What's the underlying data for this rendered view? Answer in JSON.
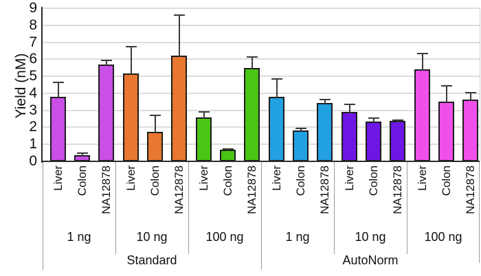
{
  "chart_data": {
    "type": "bar",
    "title": "",
    "ylabel": "Yield (nM)",
    "ylim": [
      0,
      9
    ],
    "yticks": [
      0,
      1,
      2,
      3,
      4,
      5,
      6,
      7,
      8,
      9
    ],
    "grid": true,
    "legend_position": "none",
    "bar_labels": [
      "Liver",
      "Colon",
      "NA12878"
    ],
    "methods": [
      {
        "label": "Standard",
        "groups": [
          {
            "label": "1 ng",
            "color": "#c94fe6",
            "categories": [
              "Liver",
              "Colon",
              "NA12878"
            ],
            "values": [
              3.8,
              0.37,
              5.7
            ],
            "errors": [
              0.85,
              0.12,
              0.25
            ]
          },
          {
            "label": "10 ng",
            "color": "#e8772f",
            "categories": [
              "Liver",
              "Colon",
              "NA12878"
            ],
            "values": [
              5.15,
              1.75,
              6.2
            ],
            "errors": [
              1.6,
              0.95,
              2.4
            ]
          },
          {
            "label": "100 ng",
            "color": "#49c514",
            "categories": [
              "Liver",
              "Colon",
              "NA12878"
            ],
            "values": [
              2.6,
              0.67,
              5.5
            ],
            "errors": [
              0.3,
              0.06,
              0.65
            ]
          }
        ]
      },
      {
        "label": "AutoNorm",
        "groups": [
          {
            "label": "1 ng",
            "color": "#22a1e2",
            "categories": [
              "Liver",
              "Colon",
              "NA12878"
            ],
            "values": [
              3.8,
              1.8,
              3.45
            ],
            "errors": [
              1.05,
              0.15,
              0.17
            ]
          },
          {
            "label": "10 ng",
            "color": "#6d17e3",
            "categories": [
              "Liver",
              "Colon",
              "NA12878"
            ],
            "values": [
              2.9,
              2.33,
              2.37
            ],
            "errors": [
              0.45,
              0.2,
              0.05
            ]
          },
          {
            "label": "100 ng",
            "color": "#f050ea",
            "categories": [
              "Liver",
              "Colon",
              "NA12878"
            ],
            "values": [
              5.4,
              3.5,
              3.65
            ],
            "errors": [
              0.95,
              0.95,
              0.4
            ]
          }
        ]
      }
    ],
    "colors": {
      "axis": "#2b2b2b",
      "grid": "#dcdcdc",
      "error_bar": "#3a3a3a",
      "bar_border": "#1c1c1c",
      "text": "#111111"
    }
  }
}
